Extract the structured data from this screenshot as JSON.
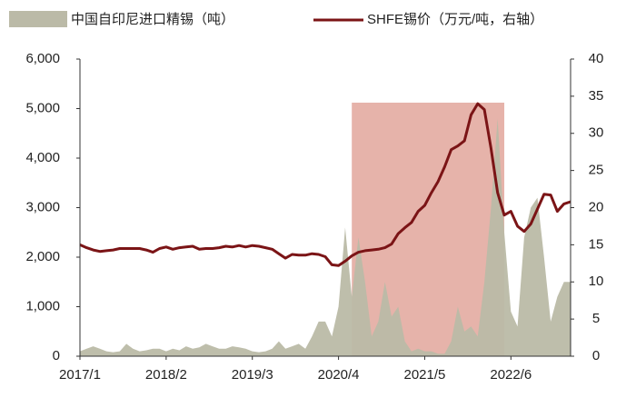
{
  "chart_data": {
    "type": "combo",
    "categories": [
      "2017/1",
      null,
      null,
      null,
      null,
      null,
      null,
      null,
      null,
      null,
      null,
      null,
      null,
      "2018/2",
      null,
      null,
      null,
      null,
      null,
      null,
      null,
      null,
      null,
      null,
      null,
      null,
      "2019/3",
      null,
      null,
      null,
      null,
      null,
      null,
      null,
      null,
      null,
      null,
      null,
      null,
      "2020/4",
      null,
      null,
      null,
      null,
      null,
      null,
      null,
      null,
      null,
      null,
      null,
      null,
      "2021/5",
      null,
      null,
      null,
      null,
      null,
      null,
      null,
      null,
      null,
      null,
      null,
      null,
      "2022/6",
      null,
      null,
      null,
      null,
      null,
      null,
      null,
      null,
      null
    ],
    "series": [
      {
        "name": "中国自印尼进口精锡（吨）",
        "type": "area",
        "axis": "y",
        "color": "#bbbaa7",
        "values": [
          100,
          150,
          200,
          150,
          100,
          80,
          100,
          250,
          150,
          100,
          120,
          150,
          150,
          100,
          150,
          120,
          200,
          150,
          180,
          250,
          200,
          150,
          150,
          200,
          180,
          150,
          100,
          80,
          100,
          150,
          300,
          150,
          200,
          250,
          150,
          400,
          700,
          700,
          400,
          1000,
          2600,
          1200,
          2400,
          1500,
          400,
          700,
          1500,
          800,
          1000,
          300,
          100,
          150,
          100,
          100,
          50,
          50,
          300,
          1000,
          500,
          600,
          400,
          1500,
          3000,
          4800,
          2500,
          900,
          600,
          2400,
          3000,
          3200,
          2000,
          700,
          1200,
          1500,
          1500
        ]
      },
      {
        "name": "SHFE锡价（万元/吨，右轴）",
        "type": "line",
        "axis": "y2",
        "color": "#7b1416",
        "values": [
          15.0,
          14.6,
          14.3,
          14.1,
          14.2,
          14.3,
          14.5,
          14.5,
          14.5,
          14.5,
          14.3,
          14.0,
          14.5,
          14.7,
          14.4,
          14.6,
          14.7,
          14.8,
          14.4,
          14.5,
          14.5,
          14.6,
          14.8,
          14.7,
          14.9,
          14.7,
          14.9,
          14.8,
          14.6,
          14.4,
          13.8,
          13.2,
          13.7,
          13.6,
          13.6,
          13.8,
          13.7,
          13.4,
          12.3,
          12.2,
          12.8,
          13.5,
          14.0,
          14.2,
          14.3,
          14.4,
          14.6,
          15.1,
          16.5,
          17.3,
          18.0,
          19.5,
          20.3,
          22.0,
          23.5,
          25.5,
          27.8,
          28.3,
          29.0,
          32.5,
          34.0,
          33.2,
          28.0,
          22.0,
          19.0,
          19.5,
          17.5,
          16.8,
          17.8,
          19.8,
          21.8,
          21.7,
          19.5,
          20.5,
          20.8
        ]
      }
    ],
    "ylim": [
      0,
      6000
    ],
    "yticks": [
      0,
      {
        "value": 1000,
        "label": "1,000"
      },
      {
        "value": 2000,
        "label": "2,000"
      },
      {
        "value": 3000,
        "label": "3,000"
      },
      {
        "value": 4000,
        "label": "4,000"
      },
      {
        "value": 5000,
        "label": "5,000"
      },
      {
        "value": 6000,
        "label": "6,000"
      }
    ],
    "y2lim": [
      0,
      40
    ],
    "y2ticks": [
      0,
      5,
      10,
      15,
      20,
      25,
      30,
      35,
      40
    ],
    "highlight": {
      "start": 41,
      "end": 64,
      "top": 5120,
      "color": "#e6b3aa"
    }
  }
}
